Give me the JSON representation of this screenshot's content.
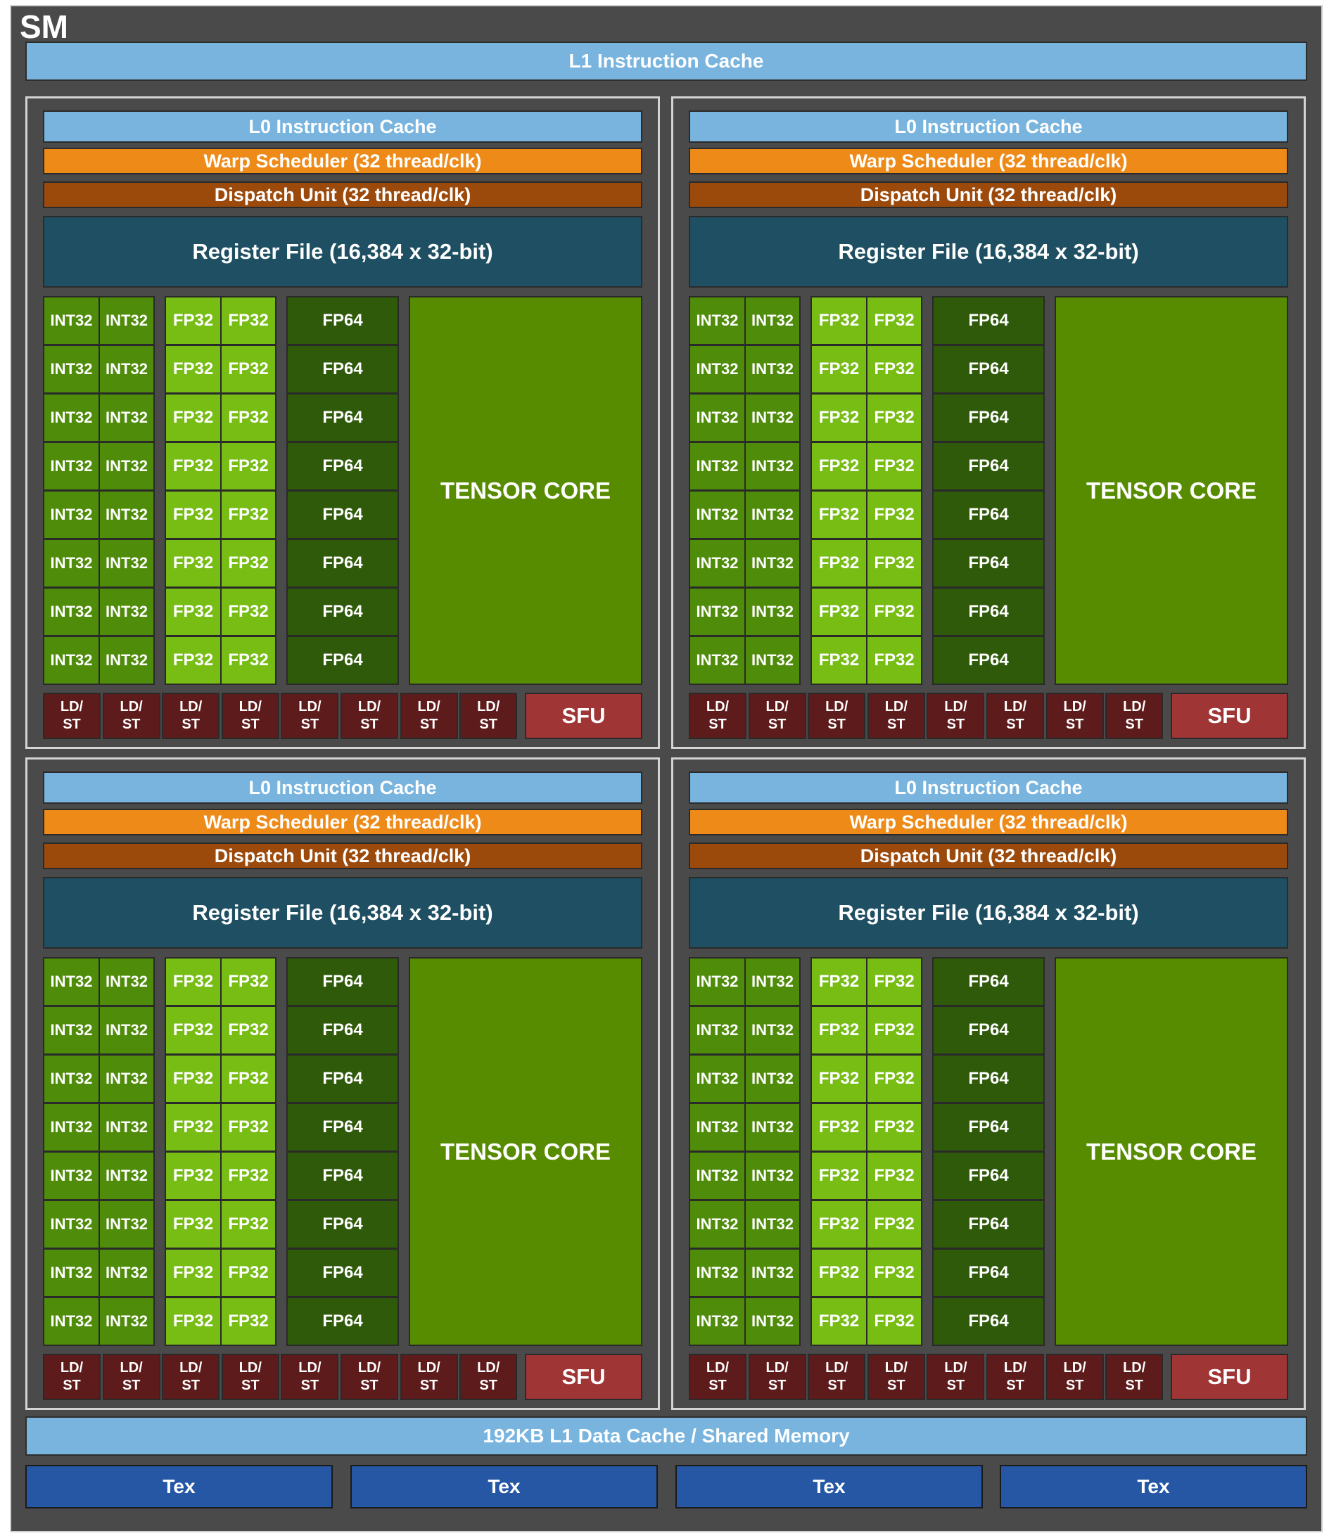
{
  "sm_label": "SM",
  "l1_instruction_cache": "L1 Instruction Cache",
  "l1_data_cache": "192KB L1 Data Cache / Shared Memory",
  "tex_units": [
    "Tex",
    "Tex",
    "Tex",
    "Tex"
  ],
  "partition": {
    "l0_instruction_cache": "L0 Instruction Cache",
    "warp_scheduler": "Warp Scheduler (32 thread/clk)",
    "dispatch_unit": "Dispatch Unit (32 thread/clk)",
    "register_file": "Register File (16,384 x 32-bit)",
    "int32_label": "INT32",
    "fp32_label": "FP32",
    "fp64_label": "FP64",
    "tensor_core_label": "TENSOR CORE",
    "ldst_line1": "LD/",
    "ldst_line2": "ST",
    "sfu_label": "SFU",
    "rows": 8,
    "ldst_count": 8
  },
  "partition_count": 4,
  "colors": {
    "sm_background": "#4a4a4a",
    "cache": "#78b4de",
    "warp_scheduler": "#ee8a18",
    "dispatch_unit": "#9c4a0c",
    "register_file": "#1f4f62",
    "int32": "#4f8c09",
    "fp32": "#77bd14",
    "fp64": "#2f5a0a",
    "tensor_core": "#588c00",
    "ldst": "#5e1b1b",
    "sfu": "#9f3535",
    "tex": "#2557a5"
  }
}
